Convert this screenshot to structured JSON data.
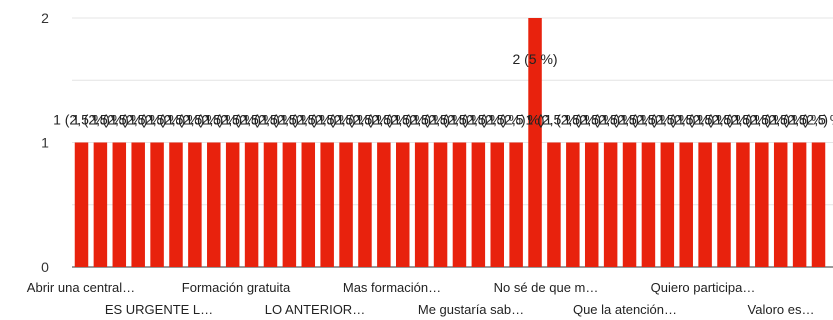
{
  "chart_data": {
    "type": "bar",
    "ylim": [
      0,
      2
    ],
    "yticks": [
      0,
      1,
      2
    ],
    "grid": true,
    "bar_color": "#e8220d",
    "values": [
      1,
      1,
      1,
      1,
      1,
      1,
      1,
      1,
      1,
      1,
      1,
      1,
      1,
      1,
      1,
      1,
      1,
      1,
      1,
      1,
      1,
      1,
      1,
      1,
      2,
      1,
      1,
      1,
      1,
      1,
      1,
      1,
      1,
      1,
      1,
      1,
      1,
      1,
      1,
      1
    ],
    "bar_labels": [
      "1 (2,5 %)",
      "1 (2,5 %)",
      "1 (2,5 %)",
      "1 (2,5 %)",
      "1 (2,5 %)",
      "1 (2,5 %)",
      "1 (2,5 %)",
      "1 (2,5 %)",
      "1 (2,5 %)",
      "1 (2,5 %)",
      "1 (2,5 %)",
      "1 (2,5 %)",
      "1 (2,5 %)",
      "1 (2,5 %)",
      "1 (2,5 %)",
      "1 (2,5 %)",
      "1 (2,5 %)",
      "1 (2,5 %)",
      "1 (2,5 %)",
      "1 (2,5 %)",
      "1 (2,5 %)",
      "1 (2,5 %)",
      "1 (2,5 %)",
      "1 (2,5 %)",
      "2 (5 %)",
      "1 (2,5 %)",
      "1 (2,5 %)",
      "1 (2,5 %)",
      "1 (2,5 %)",
      "1 (2,5 %)",
      "1 (2,5 %)",
      "1 (2,5 %)",
      "1 (2,5 %)",
      "1 (2,5 %)",
      "1 (2,5 %)",
      "1 (2,5 %)",
      "1 (2,5 %)",
      "1 (2,5 %)",
      "1 (2,5 %)",
      "1 (2,5 %)"
    ],
    "category_labels_row1": [
      "Abrir una central…",
      "Formación gratuita",
      "Mas formación…",
      "No sé de que m…",
      "Quiero participa…"
    ],
    "category_labels_row2": [
      "ES URGENTE L…",
      "LO ANTERIOR…",
      "Me gustaría sab…",
      "Que la atención…",
      "Valoro es…"
    ]
  }
}
